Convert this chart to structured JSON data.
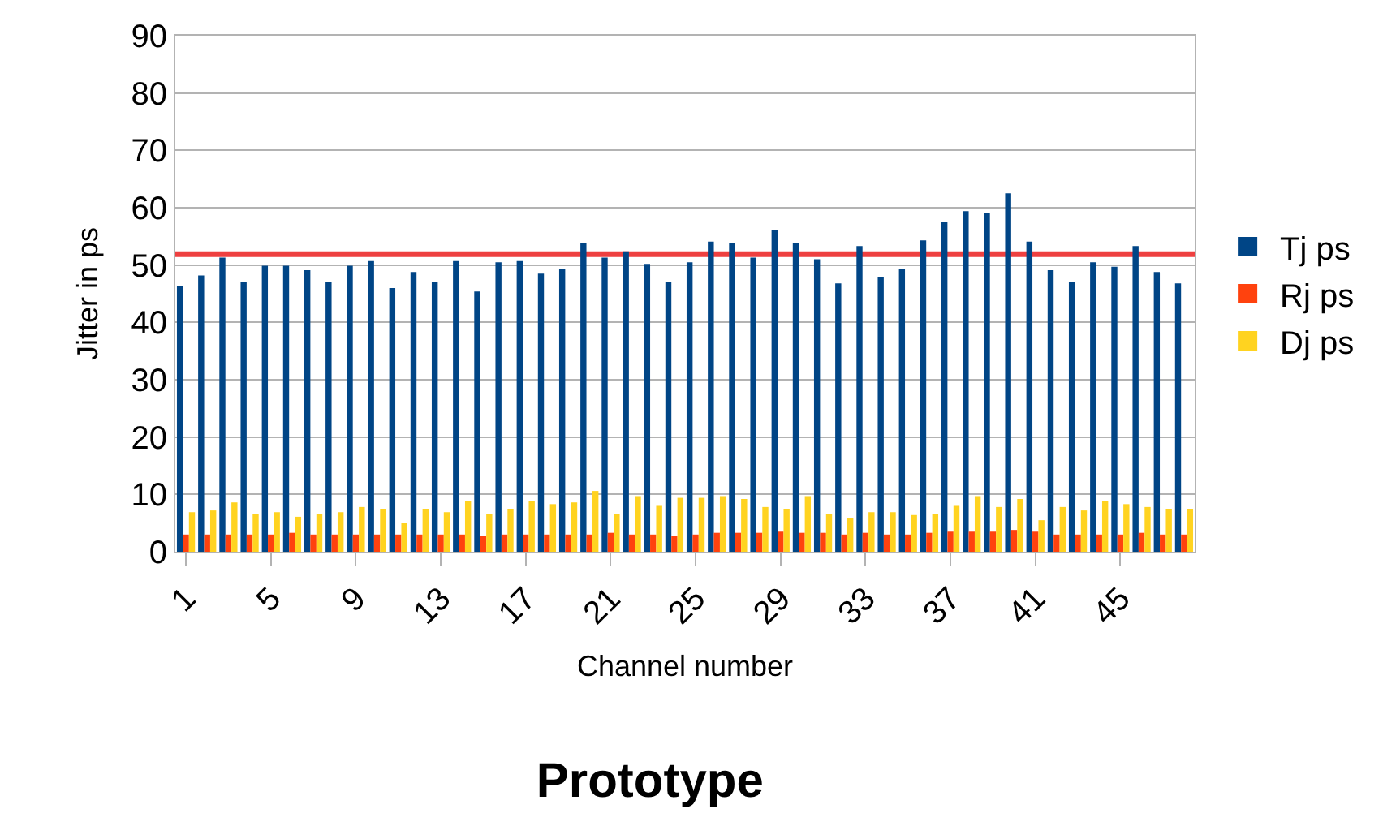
{
  "chart_data": {
    "type": "bar",
    "title": "Prototype",
    "xlabel": "Channel number",
    "ylabel": "Jitter in ps",
    "categories": [
      "1",
      null,
      null,
      null,
      "5",
      null,
      null,
      null,
      "9",
      null,
      null,
      null,
      "13",
      null,
      null,
      null,
      "17",
      null,
      null,
      null,
      "21",
      null,
      null,
      null,
      "25",
      null,
      null,
      null,
      "29",
      null,
      null,
      null,
      "33",
      null,
      null,
      null,
      "37",
      null,
      null,
      null,
      "41",
      null,
      null,
      null,
      "45",
      null,
      null,
      null
    ],
    "series": [
      {
        "name": "Tj ps",
        "color": "#004586",
        "values": [
          46.3,
          48.2,
          51.3,
          47.1,
          49.9,
          49.9,
          49.1,
          47.1,
          49.9,
          50.7,
          46.0,
          48.8,
          47.0,
          50.7,
          45.4,
          50.5,
          50.7,
          48.5,
          49.3,
          53.8,
          51.3,
          52.4,
          50.2,
          47.1,
          50.5,
          54.1,
          53.8,
          51.3,
          56.1,
          53.8,
          51.0,
          46.8,
          53.3,
          47.9,
          49.3,
          54.3,
          57.5,
          59.4,
          59.1,
          62.5,
          54.1,
          49.1,
          47.1,
          50.5,
          49.7,
          53.3,
          48.8,
          46.8
        ]
      },
      {
        "name": "Rj ps",
        "color": "#ff420e",
        "values": [
          3.0,
          3.0,
          3.0,
          3.0,
          3.0,
          3.3,
          3.0,
          3.0,
          3.0,
          3.0,
          3.0,
          3.0,
          3.0,
          3.0,
          2.7,
          3.0,
          3.0,
          3.0,
          3.0,
          3.0,
          3.3,
          3.0,
          3.0,
          2.7,
          3.0,
          3.3,
          3.3,
          3.3,
          3.5,
          3.3,
          3.3,
          3.0,
          3.3,
          3.0,
          3.0,
          3.3,
          3.5,
          3.5,
          3.5,
          3.8,
          3.5,
          3.0,
          3.0,
          3.0,
          3.0,
          3.3,
          3.0,
          3.0
        ]
      },
      {
        "name": "Dj ps",
        "color": "#ffd320",
        "values": [
          6.9,
          7.2,
          8.6,
          6.6,
          6.9,
          6.1,
          6.6,
          6.9,
          7.8,
          7.5,
          5.0,
          7.5,
          6.9,
          8.9,
          6.6,
          7.5,
          8.9,
          8.3,
          8.6,
          10.6,
          6.6,
          9.7,
          8.0,
          9.4,
          9.4,
          9.7,
          9.2,
          7.8,
          7.5,
          9.7,
          6.6,
          5.8,
          6.9,
          6.9,
          6.4,
          6.6,
          8.0,
          9.7,
          7.8,
          9.2,
          5.5,
          7.8,
          7.2,
          8.9,
          8.3,
          7.8,
          7.5,
          7.5
        ]
      }
    ],
    "ylim": [
      0,
      90
    ],
    "yticks": [
      0,
      10,
      20,
      30,
      40,
      50,
      60,
      70,
      80,
      90
    ],
    "grid": "y",
    "legend": "right",
    "ref_lines": [
      {
        "axis": "y",
        "value": 51.9,
        "color": "#ee4040"
      }
    ]
  }
}
